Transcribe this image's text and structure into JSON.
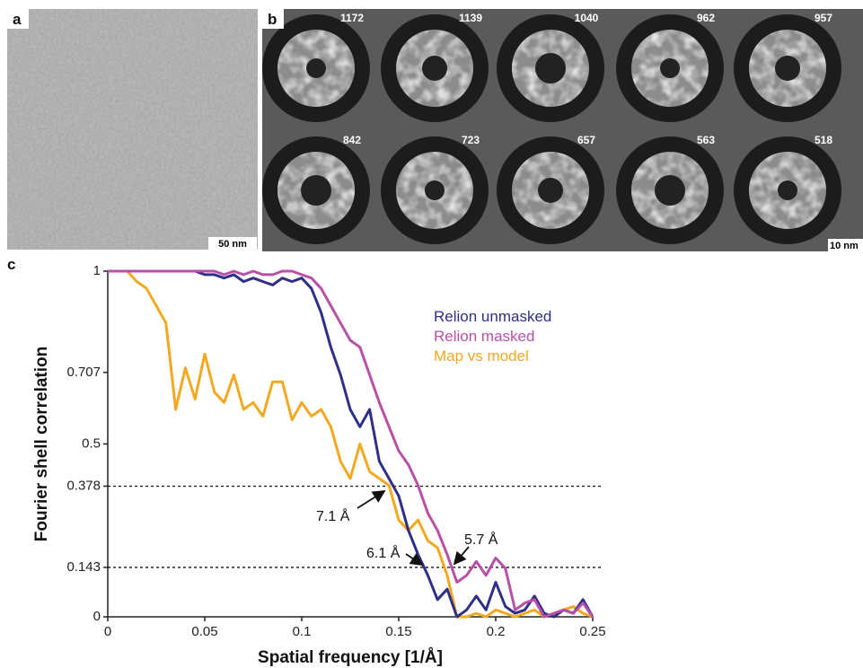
{
  "panels": {
    "a": {
      "label": "a",
      "scale_bar": "50 nm"
    },
    "b": {
      "label": "b",
      "class_counts": [
        "1172",
        "1139",
        "1040",
        "962",
        "957",
        "842",
        "723",
        "657",
        "563",
        "518"
      ],
      "scale_bar": "10 nm"
    },
    "c": {
      "label": "c"
    }
  },
  "chart_data": {
    "type": "line",
    "xlabel": "Spatial frequency [1/Å]",
    "ylabel": "Fourier shell correlation",
    "xlim": [
      0,
      0.25
    ],
    "ylim": [
      0,
      1
    ],
    "xticks": [
      0,
      0.05,
      0.1,
      0.15,
      0.2,
      0.25
    ],
    "yticks": [
      0,
      0.143,
      0.378,
      0.5,
      0.707,
      1
    ],
    "reference_lines": [
      0.378,
      0.143
    ],
    "annotations": [
      "7.1 Å",
      "6.1 Å",
      "5.7 Å"
    ],
    "legend": "upper right",
    "x": [
      0,
      0.005,
      0.01,
      0.015,
      0.02,
      0.025,
      0.03,
      0.035,
      0.04,
      0.045,
      0.05,
      0.055,
      0.06,
      0.065,
      0.07,
      0.075,
      0.08,
      0.085,
      0.09,
      0.095,
      0.1,
      0.105,
      0.11,
      0.115,
      0.12,
      0.125,
      0.13,
      0.135,
      0.14,
      0.145,
      0.15,
      0.155,
      0.16,
      0.165,
      0.17,
      0.175,
      0.18,
      0.185,
      0.19,
      0.195,
      0.2,
      0.205,
      0.21,
      0.215,
      0.22,
      0.225,
      0.23,
      0.235,
      0.24,
      0.245,
      0.25
    ],
    "series": [
      {
        "name": "Relion unmasked",
        "color": "#2e2f86",
        "values": [
          1,
          1,
          1,
          1,
          1,
          1,
          1,
          1,
          1,
          1,
          0.99,
          0.99,
          0.98,
          0.99,
          0.97,
          0.98,
          0.97,
          0.96,
          0.98,
          0.97,
          0.98,
          0.95,
          0.88,
          0.78,
          0.7,
          0.6,
          0.55,
          0.6,
          0.45,
          0.4,
          0.35,
          0.25,
          0.18,
          0.12,
          0.05,
          0.08,
          0,
          0.02,
          0.06,
          0.02,
          0.1,
          0.03,
          0.01,
          0.02,
          0.06,
          0.01,
          0,
          0.02,
          0.01,
          0.05,
          0
        ]
      },
      {
        "name": "Relion masked",
        "color": "#b850a8",
        "values": [
          1,
          1,
          1,
          1,
          1,
          1,
          1,
          1,
          1,
          1,
          1,
          1,
          0.99,
          1,
          0.99,
          1,
          0.99,
          0.99,
          1,
          1,
          0.99,
          0.98,
          0.95,
          0.9,
          0.85,
          0.8,
          0.78,
          0.7,
          0.62,
          0.55,
          0.48,
          0.44,
          0.38,
          0.3,
          0.25,
          0.18,
          0.1,
          0.12,
          0.16,
          0.12,
          0.17,
          0.14,
          0.02,
          0.04,
          0.05,
          0,
          0.01,
          0.02,
          0.01,
          0.04,
          0
        ]
      },
      {
        "name": "Map vs model",
        "color": "#f2a91f",
        "values": [
          1,
          1,
          1,
          0.97,
          0.95,
          0.9,
          0.85,
          0.6,
          0.72,
          0.63,
          0.76,
          0.65,
          0.62,
          0.7,
          0.6,
          0.62,
          0.58,
          0.68,
          0.68,
          0.57,
          0.62,
          0.58,
          0.6,
          0.55,
          0.45,
          0.4,
          0.5,
          0.42,
          0.4,
          0.38,
          0.28,
          0.25,
          0.28,
          0.22,
          0.2,
          0.12,
          0,
          0,
          0.01,
          0,
          0.02,
          0.01,
          0,
          0.01,
          0.02,
          0,
          0.01,
          0.02,
          0.03,
          0.01,
          0
        ]
      }
    ]
  }
}
